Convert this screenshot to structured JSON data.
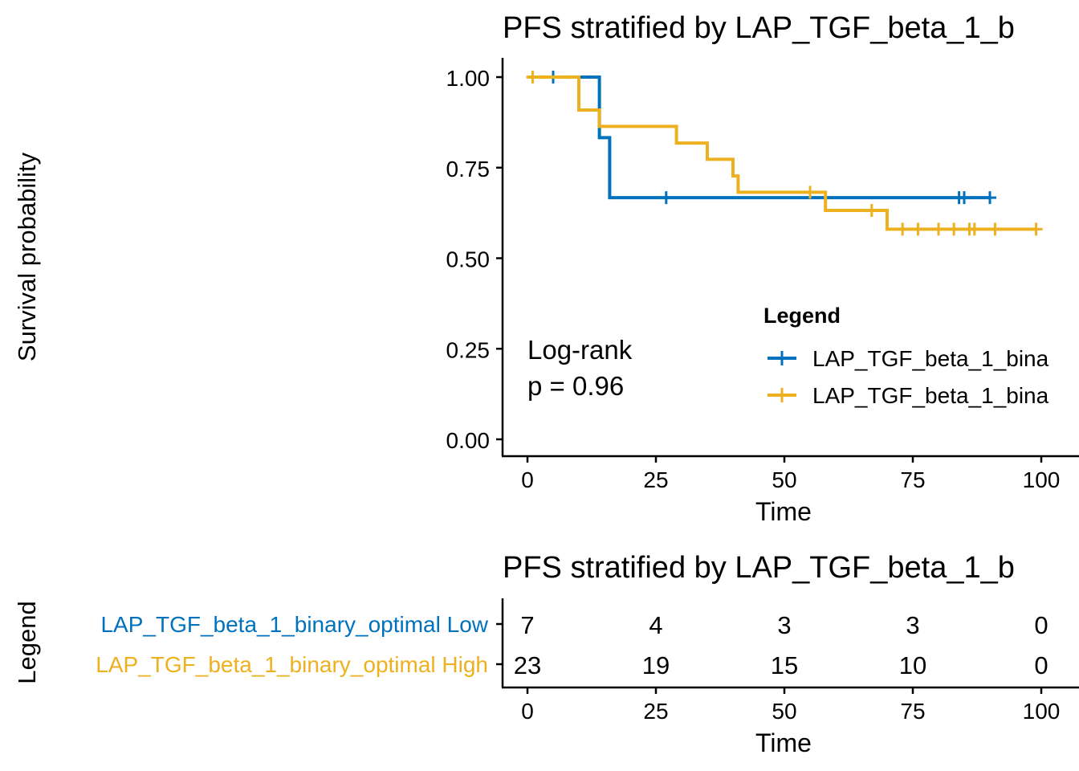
{
  "chart_data": [
    {
      "type": "line",
      "subtype": "kaplan-meier",
      "title": "PFS stratified by LAP_TGF_beta_1_b",
      "xlabel": "Time",
      "ylabel": "Survival probability",
      "xlim": [
        0,
        100
      ],
      "ylim": [
        0,
        1
      ],
      "x_ticks": [
        "0",
        "25",
        "50",
        "75",
        "100"
      ],
      "y_ticks": [
        "0.00",
        "0.25",
        "0.50",
        "0.75",
        "1.00"
      ],
      "annotation": {
        "line1": "Log-rank",
        "line2": "p = 0.96"
      },
      "legend": {
        "title": "Legend",
        "position": "right",
        "entries": [
          "LAP_TGF_beta_1_bina",
          "LAP_TGF_beta_1_bina"
        ]
      },
      "series": [
        {
          "color": "#0072BD",
          "steps": [
            [
              0,
              1.0
            ],
            [
              14,
              0.833
            ],
            [
              16,
              0.667
            ],
            [
              90,
              0.667
            ]
          ],
          "censor_times": [
            5,
            27,
            84,
            85,
            90
          ]
        },
        {
          "color": "#EDB120",
          "steps": [
            [
              0,
              1.0
            ],
            [
              10,
              0.909
            ],
            [
              14,
              0.864
            ],
            [
              29,
              0.818
            ],
            [
              35,
              0.773
            ],
            [
              40,
              0.727
            ],
            [
              41,
              0.682
            ],
            [
              58,
              0.632
            ],
            [
              70,
              0.58
            ],
            [
              99,
              0.58
            ]
          ],
          "censor_times": [
            1,
            55,
            67,
            73,
            76,
            80,
            83,
            86,
            87,
            91,
            99
          ]
        }
      ]
    },
    {
      "type": "table",
      "title": "PFS stratified by LAP_TGF_beta_1_b",
      "xlabel": "Time",
      "ylabel": "Legend",
      "xlim": [
        0,
        100
      ],
      "x_ticks": [
        "0",
        "25",
        "50",
        "75",
        "100"
      ],
      "times": [
        0,
        25,
        50,
        75,
        100
      ],
      "rows": [
        {
          "label": "LAP_TGF_beta_1_binary_optimal Low",
          "color": "#0072BD",
          "values": [
            "7",
            "4",
            "3",
            "3",
            "0"
          ]
        },
        {
          "label": "LAP_TGF_beta_1_binary_optimal High",
          "color": "#EDB120",
          "values": [
            "23",
            "19",
            "15",
            "10",
            "0"
          ]
        }
      ]
    }
  ]
}
